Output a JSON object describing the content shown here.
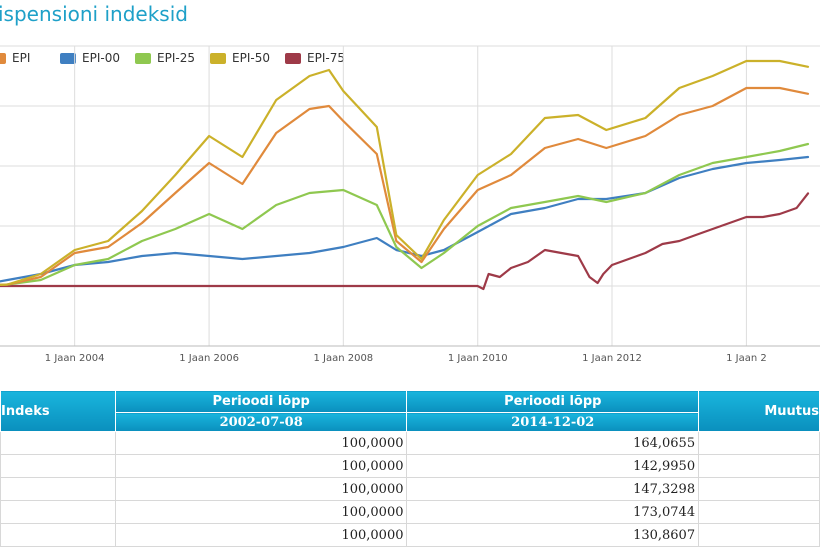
{
  "page": {
    "title": "ispensioni indeksid"
  },
  "legend": [
    {
      "name": "EPI",
      "color": "#e08a3c"
    },
    {
      "name": "EPI-00",
      "color": "#3f7fc1"
    },
    {
      "name": "EPI-25",
      "color": "#8fc850"
    },
    {
      "name": "EPI-50",
      "color": "#cbb12a"
    },
    {
      "name": "EPI-75",
      "color": "#9e3a48"
    }
  ],
  "chart_data": {
    "type": "line",
    "title": "",
    "xlabel": "",
    "ylabel": "",
    "xticks": [
      "1 Jaan 2004",
      "1 Jaan 2006",
      "1 Jaan 2008",
      "1 Jaan 2010",
      "1 Jaan 2012",
      "1 Jaan 2"
    ],
    "grid": true,
    "xlim": [
      "2002-07-08",
      "2014-12-02"
    ],
    "ylim": [
      80,
      180
    ],
    "series": [
      {
        "name": "EPI",
        "color": "#e08a3c",
        "x": [
          "2002-07-08",
          "2003-01-01",
          "2003-07-01",
          "2004-01-01",
          "2004-07-01",
          "2005-01-01",
          "2005-07-01",
          "2006-01-01",
          "2006-07-01",
          "2007-01-01",
          "2007-07-01",
          "2007-10-15",
          "2008-01-01",
          "2008-07-01",
          "2008-10-15",
          "2009-03-01",
          "2009-07-01",
          "2010-01-01",
          "2010-07-01",
          "2011-01-01",
          "2011-07-01",
          "2011-12-01",
          "2012-07-01",
          "2013-01-01",
          "2013-07-01",
          "2014-01-01",
          "2014-07-01",
          "2014-12-02"
        ],
        "y": [
          100,
          100.5,
          103,
          111,
          113,
          121,
          131,
          141,
          134,
          151,
          159,
          160,
          155,
          144,
          115,
          108,
          119,
          132,
          137,
          146,
          149,
          146,
          150,
          157,
          160,
          166,
          166,
          164.0655
        ]
      },
      {
        "name": "EPI-00",
        "color": "#3f7fc1",
        "x": [
          "2002-07-08",
          "2003-01-01",
          "2003-07-01",
          "2004-01-01",
          "2004-07-01",
          "2005-01-01",
          "2005-07-01",
          "2006-01-01",
          "2006-07-01",
          "2007-01-01",
          "2007-07-01",
          "2008-01-01",
          "2008-07-01",
          "2008-10-15",
          "2009-03-01",
          "2009-07-01",
          "2010-01-01",
          "2010-07-01",
          "2011-01-01",
          "2011-07-01",
          "2011-12-01",
          "2012-07-01",
          "2013-01-01",
          "2013-07-01",
          "2014-01-01",
          "2014-07-01",
          "2014-12-02"
        ],
        "y": [
          100,
          102,
          104,
          107,
          108,
          110,
          111,
          110,
          109,
          110,
          111,
          113,
          116,
          112,
          110,
          112,
          118,
          124,
          126,
          129,
          129,
          131,
          136,
          139,
          141,
          142,
          142.995
        ]
      },
      {
        "name": "EPI-25",
        "color": "#8fc850",
        "x": [
          "2002-07-08",
          "2003-01-01",
          "2003-07-01",
          "2004-01-01",
          "2004-07-01",
          "2005-01-01",
          "2005-07-01",
          "2006-01-01",
          "2006-07-01",
          "2007-01-01",
          "2007-07-01",
          "2008-01-01",
          "2008-07-01",
          "2008-10-15",
          "2009-03-01",
          "2009-07-01",
          "2010-01-01",
          "2010-07-01",
          "2011-01-01",
          "2011-07-01",
          "2011-12-01",
          "2012-07-01",
          "2013-01-01",
          "2013-07-01",
          "2014-01-01",
          "2014-07-01",
          "2014-12-02"
        ],
        "y": [
          100,
          100.5,
          102,
          107,
          109,
          115,
          119,
          124,
          119,
          127,
          131,
          132,
          127,
          113,
          106,
          111,
          120,
          126,
          128,
          130,
          128,
          131,
          137,
          141,
          143,
          145,
          147.3298
        ]
      },
      {
        "name": "EPI-50",
        "color": "#cbb12a",
        "x": [
          "2002-07-08",
          "2003-01-01",
          "2003-07-01",
          "2004-01-01",
          "2004-07-01",
          "2005-01-01",
          "2005-07-01",
          "2006-01-01",
          "2006-07-01",
          "2007-01-01",
          "2007-07-01",
          "2007-10-15",
          "2008-01-01",
          "2008-07-01",
          "2008-10-15",
          "2009-03-01",
          "2009-07-01",
          "2010-01-01",
          "2010-07-01",
          "2011-01-01",
          "2011-07-01",
          "2011-12-01",
          "2012-07-01",
          "2013-01-01",
          "2013-07-01",
          "2014-01-01",
          "2014-07-01",
          "2014-12-02"
        ],
        "y": [
          100,
          100.5,
          104,
          112,
          115,
          125,
          137,
          150,
          143,
          162,
          170,
          172,
          165,
          153,
          117,
          109,
          122,
          137,
          144,
          156,
          157,
          152,
          156,
          166,
          170,
          175,
          175,
          173.0744
        ]
      },
      {
        "name": "EPI-75",
        "color": "#9e3a48",
        "x": [
          "2002-07-08",
          "2009-12-31",
          "2010-02-01",
          "2010-03-01",
          "2010-05-01",
          "2010-07-01",
          "2010-10-01",
          "2011-01-01",
          "2011-04-01",
          "2011-07-01",
          "2011-09-01",
          "2011-10-15",
          "2011-11-15",
          "2012-01-01",
          "2012-04-01",
          "2012-07-01",
          "2012-10-01",
          "2013-01-01",
          "2013-04-01",
          "2013-07-01",
          "2013-10-01",
          "2014-01-01",
          "2014-04-01",
          "2014-07-01",
          "2014-10-01",
          "2014-12-02"
        ],
        "y": [
          100,
          100,
          99,
          104,
          103,
          106,
          108,
          112,
          111,
          110,
          103,
          101,
          104,
          107,
          109,
          111,
          114,
          115,
          117,
          119,
          121,
          123,
          123,
          124,
          126,
          130.8607
        ]
      }
    ]
  },
  "table": {
    "header_index": "Indeks",
    "header_col1": "Perioodi lõpp",
    "header_col1_date": "2002-07-08",
    "header_col2": "Perioodi lõpp",
    "header_col2_date": "2014-12-02",
    "header_col3": "Muutus",
    "rows": [
      {
        "start": "100,0000",
        "end": "164,0655"
      },
      {
        "start": "100,0000",
        "end": "142,9950"
      },
      {
        "start": "100,0000",
        "end": "147,3298"
      },
      {
        "start": "100,0000",
        "end": "173,0744"
      },
      {
        "start": "100,0000",
        "end": "130,8607"
      }
    ]
  }
}
